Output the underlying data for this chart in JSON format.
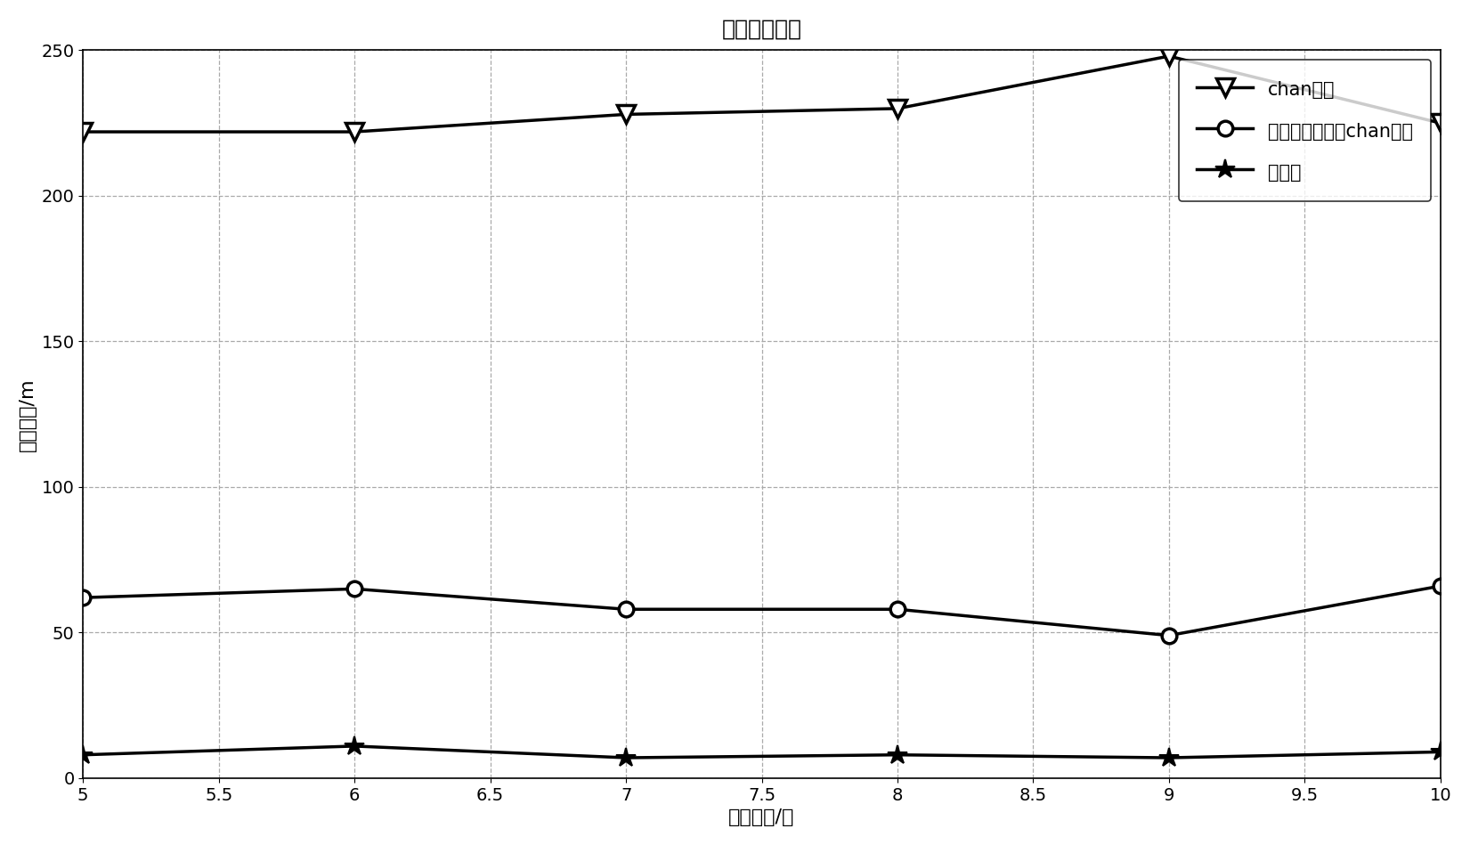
{
  "title": "定位性能比较",
  "xlabel": "基站数目/个",
  "ylabel": "定位误差/m",
  "x": [
    5,
    6,
    7,
    8,
    9,
    10
  ],
  "chan_y": [
    222,
    222,
    228,
    230,
    248,
    225
  ],
  "threshold_chan_y": [
    62,
    65,
    58,
    58,
    49,
    66
  ],
  "invention_y": [
    8,
    11,
    7,
    8,
    7,
    9
  ],
  "xlim": [
    5,
    10
  ],
  "ylim": [
    0,
    250
  ],
  "yticks": [
    0,
    50,
    100,
    150,
    200,
    250
  ],
  "xticks": [
    5,
    5.5,
    6,
    6.5,
    7,
    7.5,
    8,
    8.5,
    9,
    9.5,
    10
  ],
  "legend_chan": "chan算法",
  "legend_threshold": "带有门限判决的chan算法",
  "legend_invention": "本发明",
  "line_color": "#000000",
  "bg_color": "#ffffff",
  "title_fontsize": 18,
  "label_fontsize": 16,
  "tick_fontsize": 14,
  "legend_fontsize": 15
}
